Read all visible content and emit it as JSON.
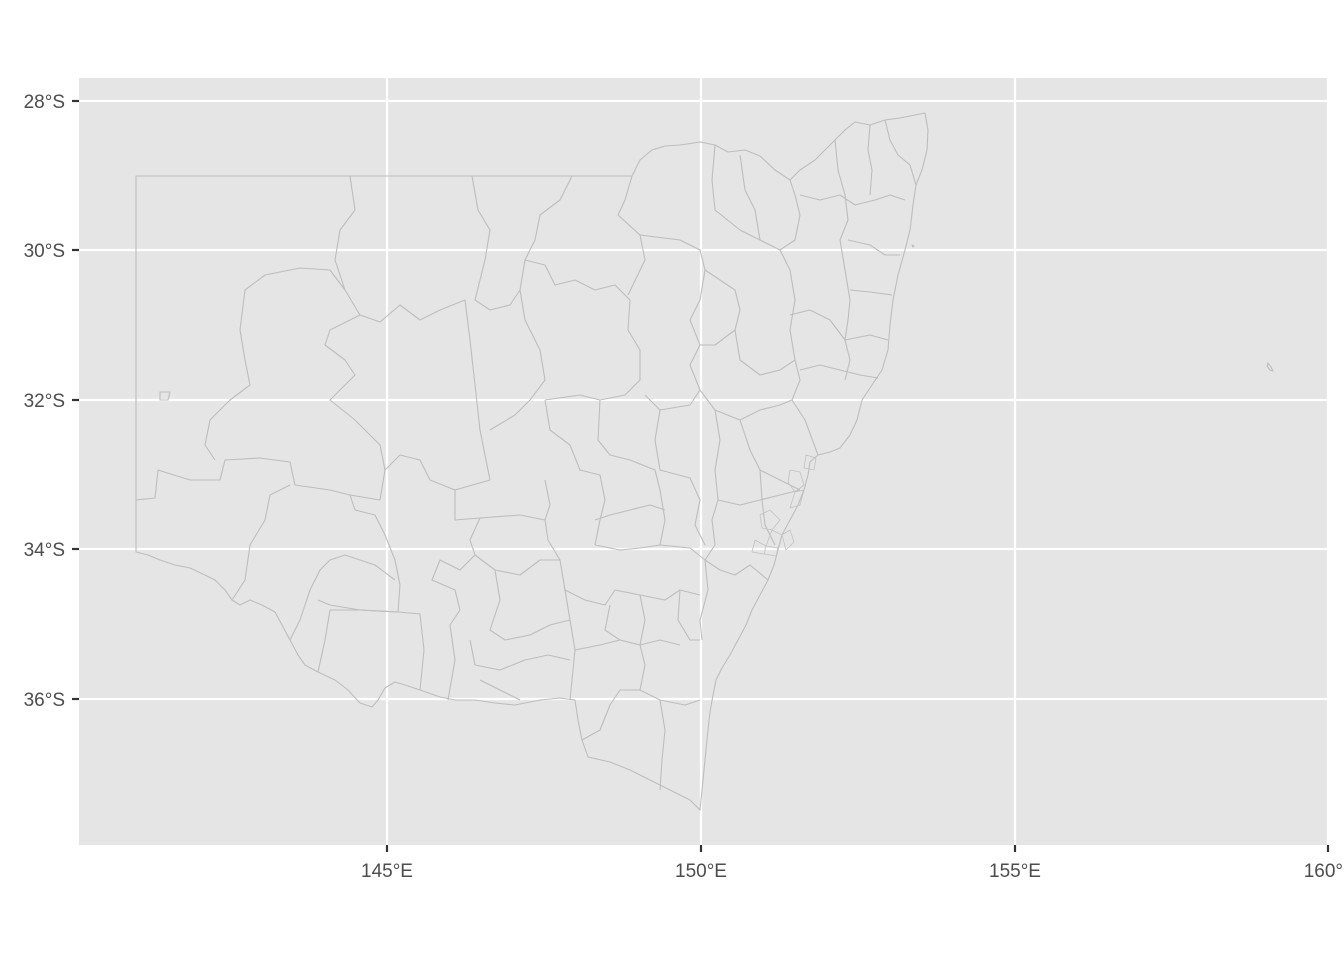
{
  "map": {
    "panel_color": "#e5e5e5",
    "boundary_color": "#bdbdbd",
    "x_range": [
      140.1,
      160.0
    ],
    "y_range": [
      -37.8,
      -27.75
    ],
    "x_breaks": [
      145,
      150,
      155,
      160
    ],
    "y_breaks": [
      -28,
      -30,
      -32,
      -34,
      -36
    ],
    "x_labels": [
      "145°E",
      "150°E",
      "155°E",
      "160°"
    ],
    "y_labels": [
      "28°S",
      "30°S",
      "32°S",
      "34°S",
      "36°S"
    ]
  }
}
